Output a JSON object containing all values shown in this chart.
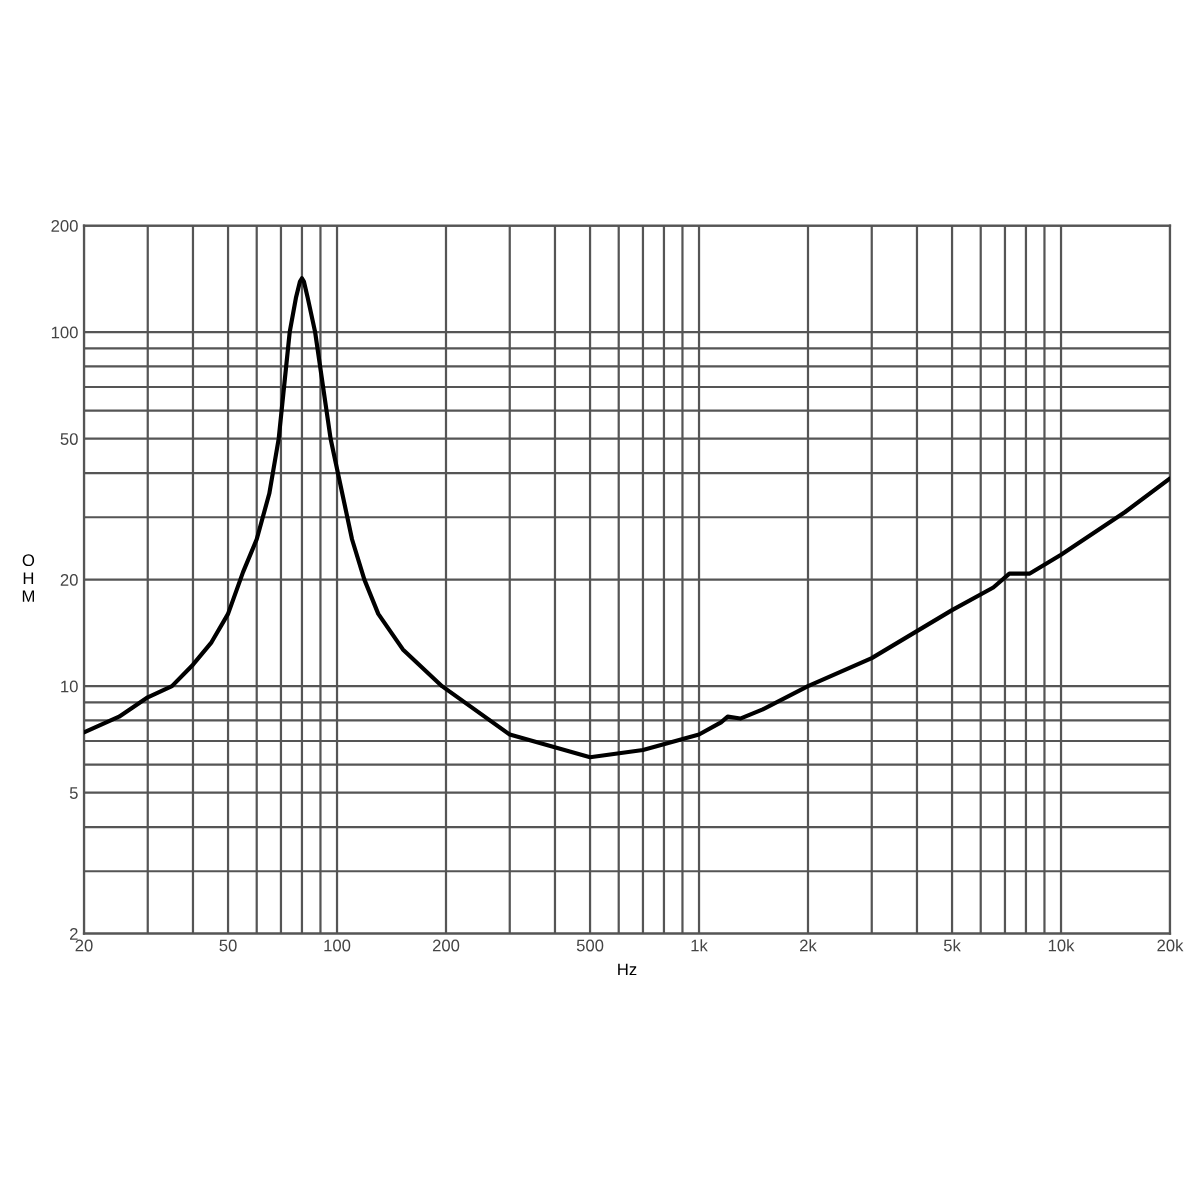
{
  "chart_data": {
    "type": "line",
    "xlabel": "Hz",
    "ylabel": "O\nH\nM",
    "log": "xy",
    "grid": true,
    "line_style": "solid",
    "marker": "none",
    "x": [
      20,
      25,
      30,
      35,
      40,
      45,
      50,
      55,
      60,
      65,
      69,
      74,
      77,
      79,
      80,
      81,
      83,
      87,
      96,
      110,
      119,
      130,
      152,
      195,
      300,
      500,
      700,
      1000,
      1150,
      1200,
      1300,
      1500,
      2000,
      3000,
      5000,
      6500,
      7200,
      8200,
      10000,
      15000,
      20000
    ],
    "series": [
      {
        "color": "#000000",
        "values": [
          7.4,
          8.2,
          9.3,
          10,
          11.5,
          13.3,
          16,
          21,
          26,
          35,
          50,
          100,
          125,
          139,
          142,
          139,
          125,
          100,
          50,
          26,
          20,
          16,
          12.7,
          10,
          7.3,
          6.3,
          6.6,
          7.3,
          7.9,
          8.2,
          8.1,
          8.6,
          10,
          12,
          16.4,
          19,
          20.8,
          20.8,
          23.5,
          31,
          38.6
        ]
      }
    ],
    "xlim": [
      20,
      20000
    ],
    "ylim": [
      2,
      200
    ],
    "xticks": [
      20,
      {
        "value": 30,
        "label": null
      },
      {
        "value": 40,
        "label": null
      },
      50,
      {
        "value": 60,
        "label": null
      },
      {
        "value": 70,
        "label": null
      },
      {
        "value": 80,
        "label": null
      },
      {
        "value": 90,
        "label": null
      },
      100,
      200,
      {
        "value": 300,
        "label": null
      },
      {
        "value": 400,
        "label": null
      },
      500,
      {
        "value": 600,
        "label": null
      },
      {
        "value": 700,
        "label": null
      },
      {
        "value": 800,
        "label": null
      },
      {
        "value": 900,
        "label": null
      },
      {
        "value": 1000,
        "label": "1k"
      },
      {
        "value": 2000,
        "label": "2k"
      },
      {
        "value": 3000,
        "label": null
      },
      {
        "value": 4000,
        "label": null
      },
      {
        "value": 5000,
        "label": "5k"
      },
      {
        "value": 6000,
        "label": null
      },
      {
        "value": 7000,
        "label": null
      },
      {
        "value": 8000,
        "label": null
      },
      {
        "value": 9000,
        "label": null
      },
      {
        "value": 10000,
        "label": "10k"
      },
      {
        "value": 20000,
        "label": "20k"
      }
    ],
    "yticks": [
      2,
      {
        "value": 3,
        "label": null
      },
      {
        "value": 4,
        "label": null
      },
      5,
      {
        "value": 6,
        "label": null
      },
      {
        "value": 7,
        "label": null
      },
      {
        "value": 8,
        "label": null
      },
      {
        "value": 9,
        "label": null
      },
      10,
      20,
      {
        "value": 30,
        "label": null
      },
      {
        "value": 40,
        "label": null
      },
      50,
      {
        "value": 60,
        "label": null
      },
      {
        "value": 70,
        "label": null
      },
      {
        "value": 80,
        "label": null
      },
      {
        "value": 90,
        "label": null
      },
      100,
      200
    ]
  }
}
